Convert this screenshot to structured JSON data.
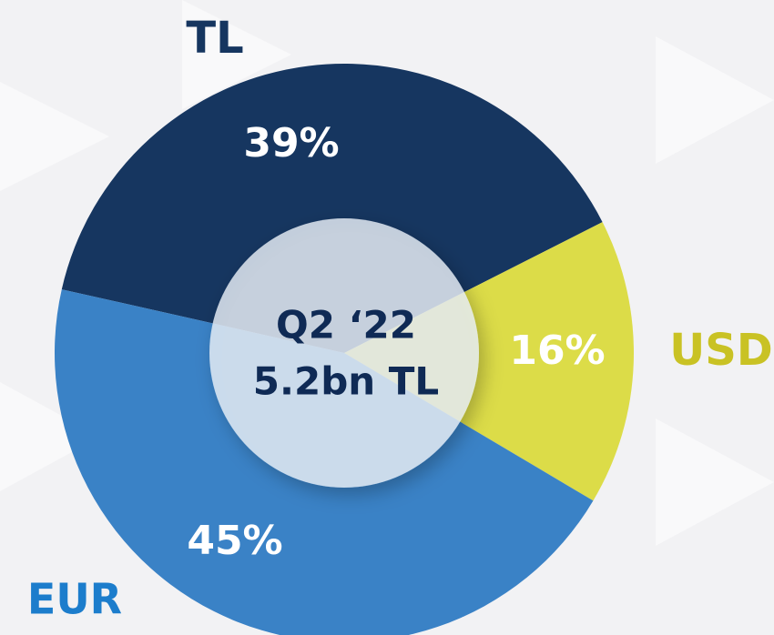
{
  "chart_data": {
    "type": "pie",
    "categories": [
      "TL",
      "USD",
      "EUR"
    ],
    "values": [
      39,
      16,
      45
    ],
    "value_labels": [
      "39%",
      "16%",
      "45%"
    ],
    "colors": [
      "#163660",
      "#dcdc48",
      "#3a82c6"
    ],
    "label_colors": [
      "#163660",
      "#c9c224",
      "#1c7dcc"
    ],
    "center_text": [
      "Q2 ‘22",
      "5.2bn TL"
    ]
  }
}
